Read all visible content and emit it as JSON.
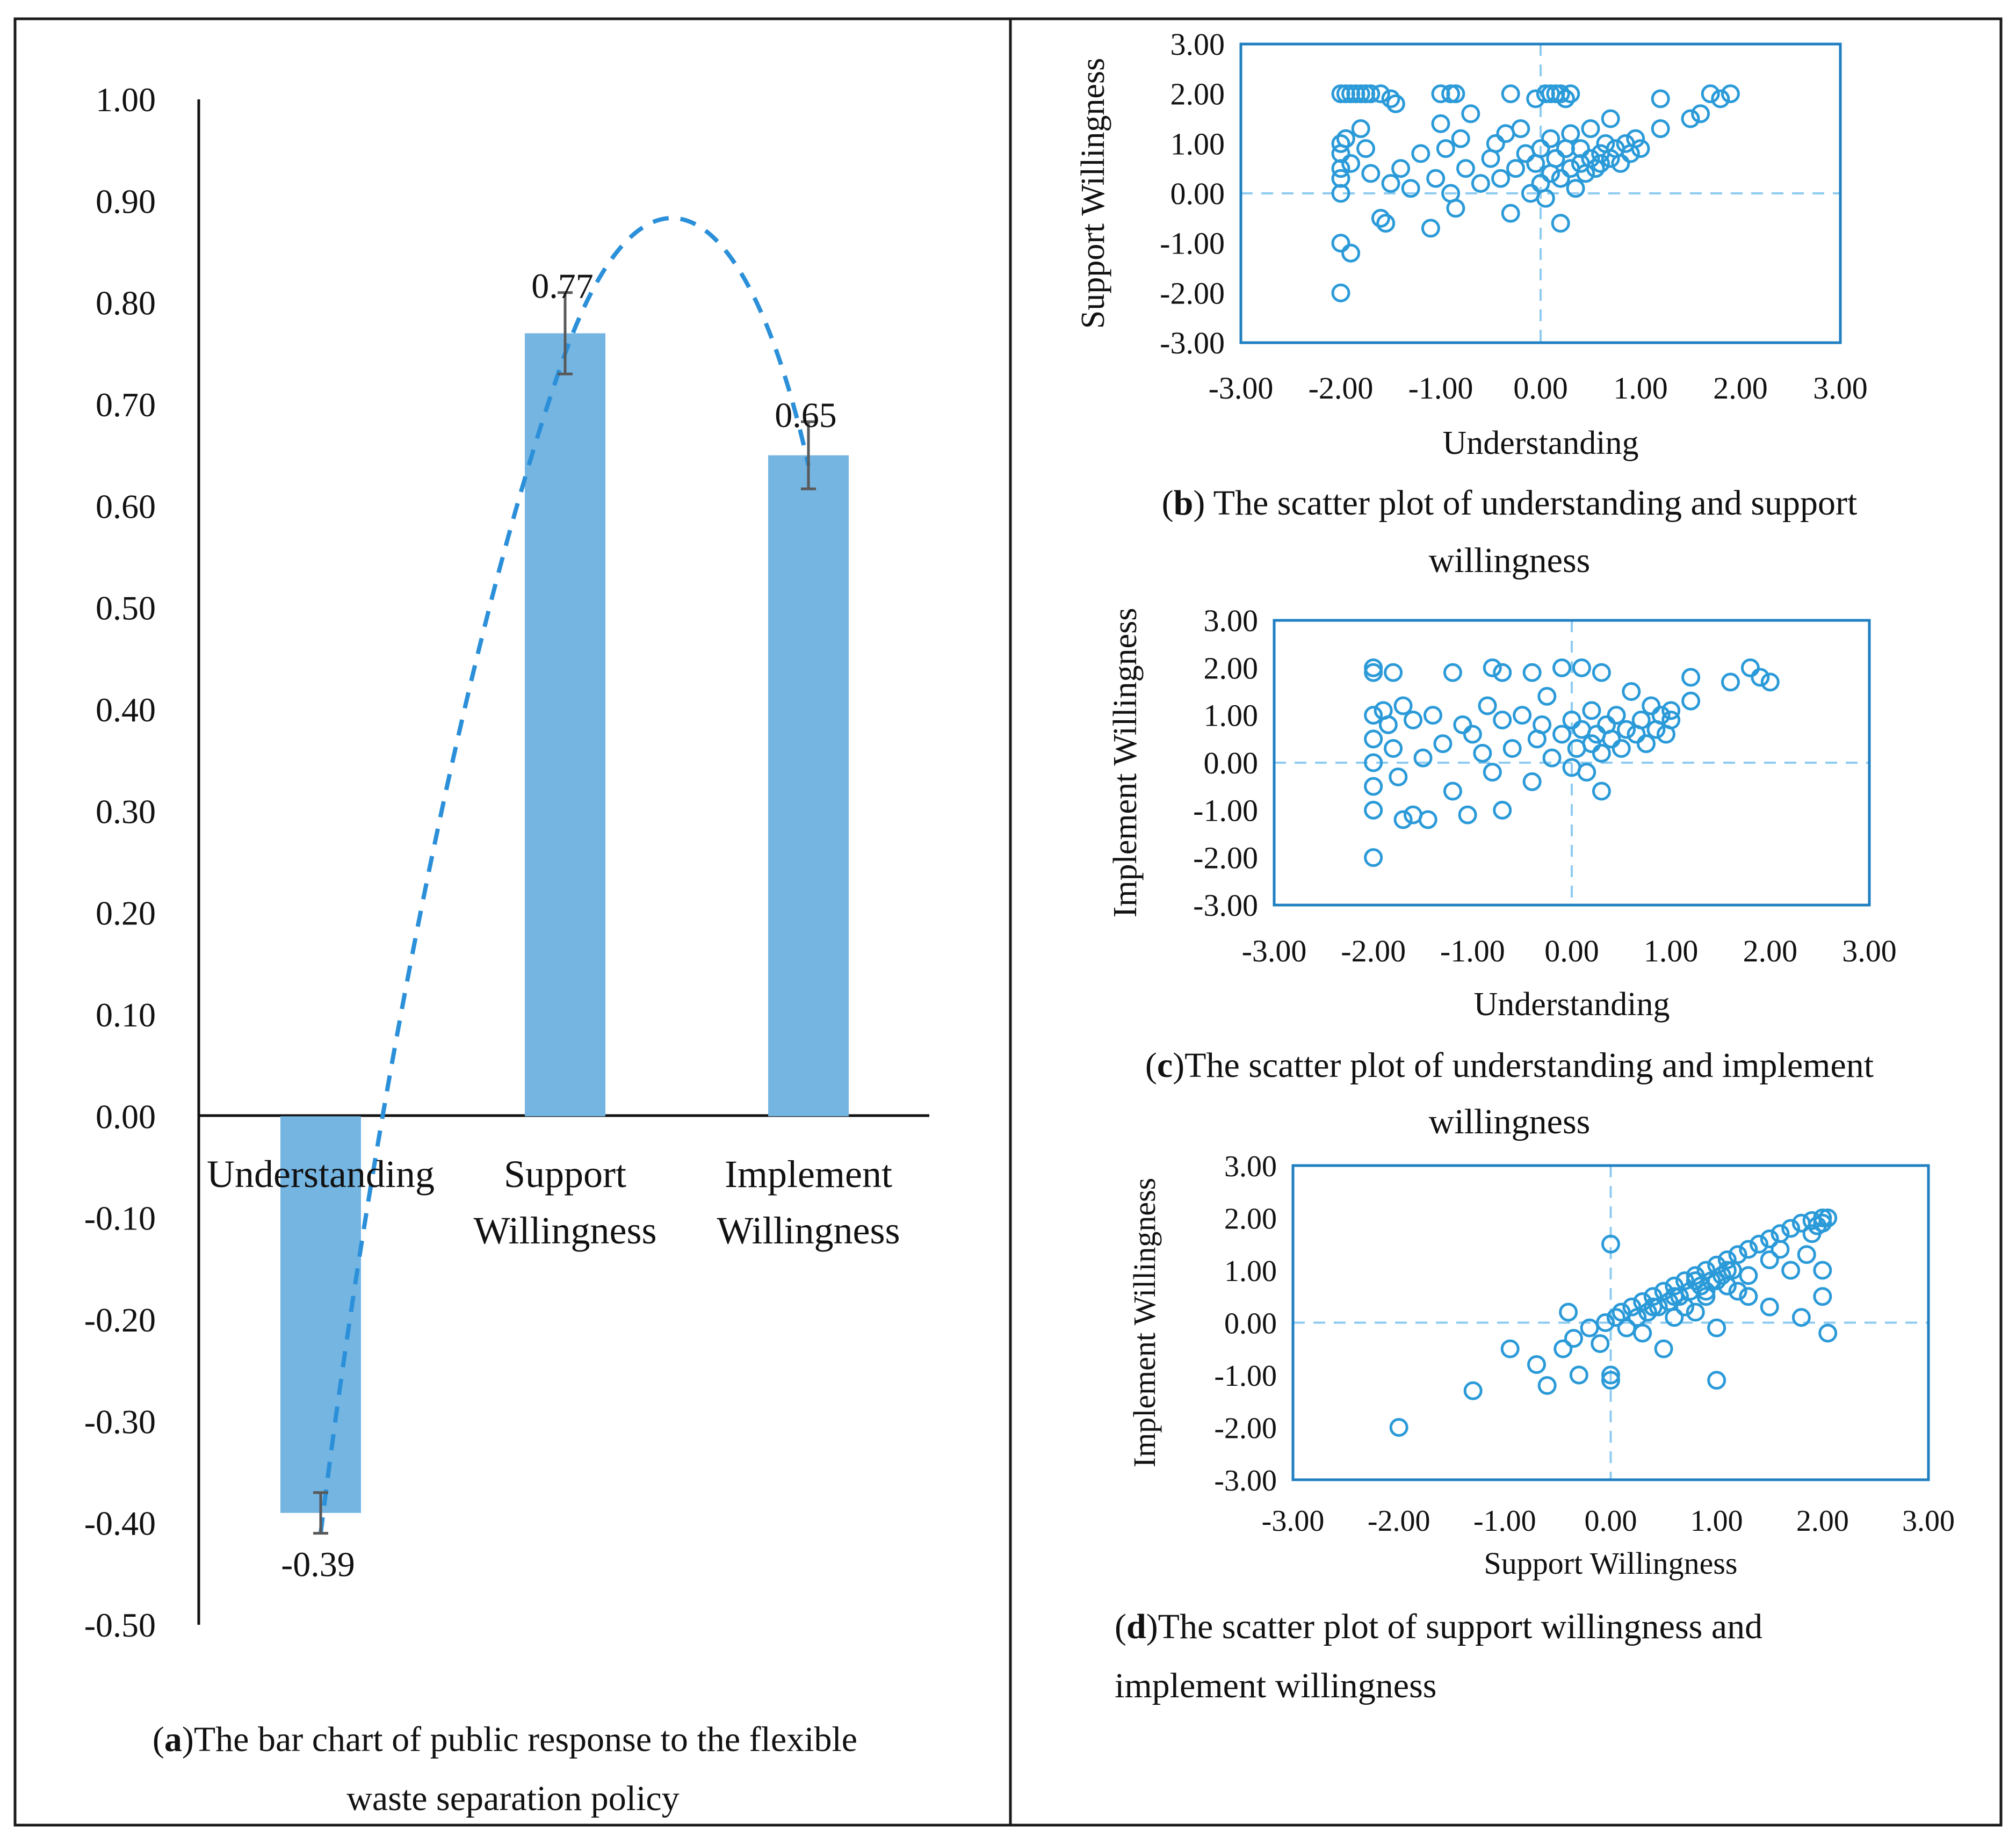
{
  "colors": {
    "bar": "#74b5e2",
    "scatter": "#2b9ad8",
    "frame": "#1f7fc0",
    "error": "#595959",
    "trend": "#2b90d9",
    "guide": "#8ecbf0"
  },
  "chart_data": [
    {
      "id": "a",
      "type": "bar",
      "categories": [
        [
          "Understanding"
        ],
        [
          "Support",
          "Willingness"
        ],
        [
          "Implement",
          "Willingness"
        ]
      ],
      "values": [
        -0.39,
        0.77,
        0.65
      ],
      "data_labels": [
        "-0.39",
        "0.77",
        "0.65"
      ],
      "error": [
        0.02,
        0.04,
        0.033
      ],
      "ylim": [
        -0.5,
        1.0
      ],
      "yticks": [
        "1.00",
        "0.90",
        "0.80",
        "0.70",
        "0.60",
        "0.50",
        "0.40",
        "0.30",
        "0.20",
        "0.10",
        "0.00",
        "-0.10",
        "-0.20",
        "-0.30",
        "-0.40",
        "-0.50"
      ],
      "trendline": "dashed polynomial",
      "caption": {
        "letter": "a",
        "lines": [
          ")The bar chart of public response to the flexible",
          "waste separation policy"
        ]
      }
    },
    {
      "id": "b",
      "type": "scatter",
      "xlabel": "Understanding",
      "ylabel": "Support Willingness",
      "xlim": [
        -3,
        3
      ],
      "ylim": [
        -3,
        3
      ],
      "xticks": [
        "-3.00",
        "-2.00",
        "-1.00",
        "0.00",
        "1.00",
        "2.00",
        "3.00"
      ],
      "yticks": [
        "3.00",
        "2.00",
        "1.00",
        "0.00",
        "-1.00",
        "-2.00",
        "-3.00"
      ],
      "caption": {
        "letter": "b",
        "lines": [
          ") The scatter plot of understanding and support",
          "willingness"
        ]
      },
      "points": [
        [
          -2,
          2
        ],
        [
          -1.95,
          2
        ],
        [
          -1.9,
          2
        ],
        [
          -1.85,
          2
        ],
        [
          -1.8,
          2
        ],
        [
          -1.75,
          2
        ],
        [
          -1.7,
          2
        ],
        [
          -1.6,
          2
        ],
        [
          -1.5,
          1.9
        ],
        [
          -1.45,
          1.8
        ],
        [
          -1.0,
          2
        ],
        [
          -0.9,
          2
        ],
        [
          -0.85,
          2
        ],
        [
          -0.3,
          2
        ],
        [
          0.05,
          2
        ],
        [
          0.1,
          2
        ],
        [
          0.15,
          2
        ],
        [
          0.2,
          2
        ],
        [
          0.25,
          1.9
        ],
        [
          0.3,
          2
        ],
        [
          -0.05,
          1.9
        ],
        [
          -2,
          1
        ],
        [
          -2,
          0.8
        ],
        [
          -2,
          0.5
        ],
        [
          -2,
          0.3
        ],
        [
          -2,
          0
        ],
        [
          -1.95,
          1.1
        ],
        [
          -1.9,
          0.6
        ],
        [
          -1.8,
          1.3
        ],
        [
          -1.75,
          0.9
        ],
        [
          -1.7,
          0.4
        ],
        [
          -1.6,
          -0.5
        ],
        [
          -1.55,
          -0.6
        ],
        [
          -1.5,
          0.2
        ],
        [
          -1.4,
          0.5
        ],
        [
          -1.3,
          0.1
        ],
        [
          -1.2,
          0.8
        ],
        [
          -1.1,
          -0.7
        ],
        [
          -1.05,
          0.3
        ],
        [
          -1.0,
          1.4
        ],
        [
          -0.95,
          0.9
        ],
        [
          -0.9,
          0.0
        ],
        [
          -0.85,
          -0.3
        ],
        [
          -0.8,
          1.1
        ],
        [
          -0.75,
          0.5
        ],
        [
          -0.7,
          1.6
        ],
        [
          -0.6,
          0.2
        ],
        [
          -0.5,
          0.7
        ],
        [
          -0.45,
          1.0
        ],
        [
          -0.4,
          0.3
        ],
        [
          -0.35,
          1.2
        ],
        [
          -0.3,
          -0.4
        ],
        [
          -0.25,
          0.5
        ],
        [
          -0.2,
          1.3
        ],
        [
          -0.15,
          0.8
        ],
        [
          -0.1,
          0.0
        ],
        [
          -0.05,
          0.6
        ],
        [
          0.0,
          0.9
        ],
        [
          0.0,
          0.2
        ],
        [
          0.05,
          -0.1
        ],
        [
          0.1,
          0.4
        ],
        [
          0.1,
          1.1
        ],
        [
          0.15,
          0.7
        ],
        [
          0.2,
          0.3
        ],
        [
          0.2,
          -0.6
        ],
        [
          0.25,
          0.9
        ],
        [
          0.3,
          0.5
        ],
        [
          0.3,
          1.2
        ],
        [
          0.35,
          0.1
        ],
        [
          0.4,
          0.6
        ],
        [
          0.4,
          0.9
        ],
        [
          0.45,
          0.4
        ],
        [
          0.5,
          0.7
        ],
        [
          0.5,
          1.3
        ],
        [
          0.55,
          0.5
        ],
        [
          0.6,
          0.8
        ],
        [
          0.6,
          0.6
        ],
        [
          0.65,
          1.0
        ],
        [
          0.7,
          0.7
        ],
        [
          0.7,
          1.5
        ],
        [
          0.75,
          0.9
        ],
        [
          0.8,
          0.6
        ],
        [
          0.85,
          1.0
        ],
        [
          0.9,
          0.8
        ],
        [
          0.95,
          1.1
        ],
        [
          1.0,
          0.9
        ],
        [
          1.2,
          1.3
        ],
        [
          1.2,
          1.9
        ],
        [
          1.5,
          1.5
        ],
        [
          1.6,
          1.6
        ],
        [
          1.7,
          2
        ],
        [
          1.8,
          1.9
        ],
        [
          1.9,
          2
        ],
        [
          -2,
          -1
        ],
        [
          -1.9,
          -1.2
        ],
        [
          -2,
          -2
        ]
      ]
    },
    {
      "id": "c",
      "type": "scatter",
      "xlabel": "Understanding",
      "ylabel": "Implement Willingness",
      "xlim": [
        -3,
        3
      ],
      "ylim": [
        -3,
        3
      ],
      "xticks": [
        "-3.00",
        "-2.00",
        "-1.00",
        "0.00",
        "1.00",
        "2.00",
        "3.00"
      ],
      "yticks": [
        "3.00",
        "2.00",
        "1.00",
        "0.00",
        "-1.00",
        "-2.00",
        "-3.00"
      ],
      "caption": {
        "letter": "c",
        "lines": [
          ")The scatter plot of understanding and implement",
          "willingness"
        ]
      },
      "points": [
        [
          -2,
          2
        ],
        [
          -2,
          1.9
        ],
        [
          -1.8,
          1.9
        ],
        [
          -1.2,
          1.9
        ],
        [
          -0.8,
          2
        ],
        [
          -0.7,
          1.9
        ],
        [
          -0.4,
          1.9
        ],
        [
          -0.1,
          2
        ],
        [
          0.1,
          2
        ],
        [
          0.3,
          1.9
        ],
        [
          1.2,
          1.8
        ],
        [
          1.6,
          1.7
        ],
        [
          1.8,
          2
        ],
        [
          1.9,
          1.8
        ],
        [
          2.0,
          1.7
        ],
        [
          -2,
          1
        ],
        [
          -2,
          0.5
        ],
        [
          -2,
          0
        ],
        [
          -2,
          -0.5
        ],
        [
          -2,
          -1
        ],
        [
          -1.9,
          1.1
        ],
        [
          -1.85,
          0.8
        ],
        [
          -1.8,
          0.3
        ],
        [
          -1.75,
          -0.3
        ],
        [
          -1.7,
          1.2
        ],
        [
          -1.6,
          0.9
        ],
        [
          -1.5,
          0.1
        ],
        [
          -1.45,
          -1.2
        ],
        [
          -1.4,
          1.0
        ],
        [
          -1.3,
          0.4
        ],
        [
          -1.2,
          -0.6
        ],
        [
          -1.1,
          0.8
        ],
        [
          -1.05,
          -1.1
        ],
        [
          -1.0,
          0.6
        ],
        [
          -0.9,
          0.2
        ],
        [
          -0.85,
          1.2
        ],
        [
          -0.8,
          -0.2
        ],
        [
          -0.7,
          0.9
        ],
        [
          -0.6,
          0.3
        ],
        [
          -0.5,
          1.0
        ],
        [
          -0.4,
          -0.4
        ],
        [
          -0.35,
          0.5
        ],
        [
          -0.3,
          0.8
        ],
        [
          -0.25,
          1.4
        ],
        [
          -0.2,
          0.1
        ],
        [
          -0.1,
          0.6
        ],
        [
          0.0,
          0.9
        ],
        [
          0.0,
          -0.1
        ],
        [
          0.05,
          0.3
        ],
        [
          0.1,
          0.7
        ],
        [
          0.15,
          -0.2
        ],
        [
          0.2,
          0.4
        ],
        [
          0.2,
          1.1
        ],
        [
          0.25,
          0.6
        ],
        [
          0.3,
          -0.6
        ],
        [
          0.3,
          0.2
        ],
        [
          0.35,
          0.8
        ],
        [
          0.4,
          0.5
        ],
        [
          0.45,
          1.0
        ],
        [
          0.5,
          0.3
        ],
        [
          0.55,
          0.7
        ],
        [
          0.6,
          1.5
        ],
        [
          0.65,
          0.6
        ],
        [
          0.7,
          0.9
        ],
        [
          0.75,
          0.4
        ],
        [
          0.8,
          1.2
        ],
        [
          0.85,
          0.7
        ],
        [
          0.9,
          1.0
        ],
        [
          0.95,
          0.6
        ],
        [
          1.0,
          0.9
        ],
        [
          1.0,
          1.1
        ],
        [
          1.2,
          1.3
        ],
        [
          -1.7,
          -1.2
        ],
        [
          -1.6,
          -1.1
        ],
        [
          -2,
          -2
        ],
        [
          -0.7,
          -1.0
        ]
      ]
    },
    {
      "id": "d",
      "type": "scatter",
      "xlabel": "Support Willingness",
      "ylabel": "Implement Willingness",
      "xlim": [
        -3,
        3
      ],
      "ylim": [
        -3,
        3
      ],
      "xticks": [
        "-3.00",
        "-2.00",
        "-1.00",
        "0.00",
        "1.00",
        "2.00",
        "3.00"
      ],
      "yticks": [
        "3.00",
        "2.00",
        "1.00",
        "0.00",
        "-1.00",
        "-2.00",
        "-3.00"
      ],
      "caption": {
        "letter": "d",
        "lines": [
          ")The scatter plot of support willingness and",
          "implement willingness"
        ]
      },
      "points": [
        [
          -2,
          -2
        ],
        [
          -1.3,
          -1.3
        ],
        [
          -0.95,
          -0.5
        ],
        [
          -0.7,
          -0.8
        ],
        [
          -0.6,
          -1.2
        ],
        [
          -0.45,
          -0.5
        ],
        [
          -0.4,
          0.2
        ],
        [
          -0.35,
          -0.3
        ],
        [
          -0.3,
          -1.0
        ],
        [
          -0.2,
          -0.1
        ],
        [
          -0.1,
          -0.4
        ],
        [
          -0.05,
          0.0
        ],
        [
          0.0,
          -1.0
        ],
        [
          0.0,
          -1.1
        ],
        [
          0.0,
          1.5
        ],
        [
          0.05,
          0.1
        ],
        [
          0.1,
          0.2
        ],
        [
          0.15,
          -0.1
        ],
        [
          0.2,
          0.3
        ],
        [
          0.25,
          0.1
        ],
        [
          0.3,
          0.4
        ],
        [
          0.35,
          0.2
        ],
        [
          0.4,
          0.5
        ],
        [
          0.45,
          0.3
        ],
        [
          0.5,
          0.6
        ],
        [
          0.55,
          0.4
        ],
        [
          0.6,
          0.7
        ],
        [
          0.65,
          0.5
        ],
        [
          0.7,
          0.8
        ],
        [
          0.75,
          0.6
        ],
        [
          0.8,
          0.9
        ],
        [
          0.85,
          0.7
        ],
        [
          0.9,
          1.0
        ],
        [
          0.95,
          0.8
        ],
        [
          1.0,
          1.1
        ],
        [
          1.05,
          0.9
        ],
        [
          1.1,
          1.2
        ],
        [
          1.15,
          1.0
        ],
        [
          1.2,
          1.3
        ],
        [
          1.3,
          1.4
        ],
        [
          1.4,
          1.5
        ],
        [
          1.5,
          1.6
        ],
        [
          1.6,
          1.7
        ],
        [
          1.7,
          1.8
        ],
        [
          1.8,
          1.9
        ],
        [
          1.9,
          1.95
        ],
        [
          2.0,
          2.0
        ],
        [
          2.05,
          2.0
        ],
        [
          0.5,
          -0.5
        ],
        [
          0.8,
          0.2
        ],
        [
          1.0,
          -1.1
        ],
        [
          1.0,
          -0.1
        ],
        [
          1.3,
          0.5
        ],
        [
          1.5,
          0.3
        ],
        [
          1.7,
          1.0
        ],
        [
          1.8,
          0.1
        ],
        [
          2.0,
          0.5
        ],
        [
          2.0,
          1.0
        ],
        [
          2.05,
          -0.2
        ],
        [
          2.0,
          1.9
        ],
        [
          1.95,
          1.85
        ],
        [
          1.9,
          1.7
        ],
        [
          1.85,
          1.3
        ],
        [
          1.2,
          0.6
        ],
        [
          0.3,
          -0.2
        ],
        [
          0.6,
          0.1
        ],
        [
          0.7,
          0.3
        ],
        [
          0.9,
          0.5
        ],
        [
          1.1,
          0.7
        ],
        [
          1.3,
          0.9
        ],
        [
          1.5,
          1.2
        ],
        [
          1.6,
          1.4
        ],
        [
          0.9,
          0.6
        ],
        [
          0.8,
          0.8
        ],
        [
          1.0,
          0.8
        ],
        [
          1.1,
          1.0
        ],
        [
          0.6,
          0.5
        ],
        [
          0.4,
          0.3
        ]
      ]
    }
  ]
}
